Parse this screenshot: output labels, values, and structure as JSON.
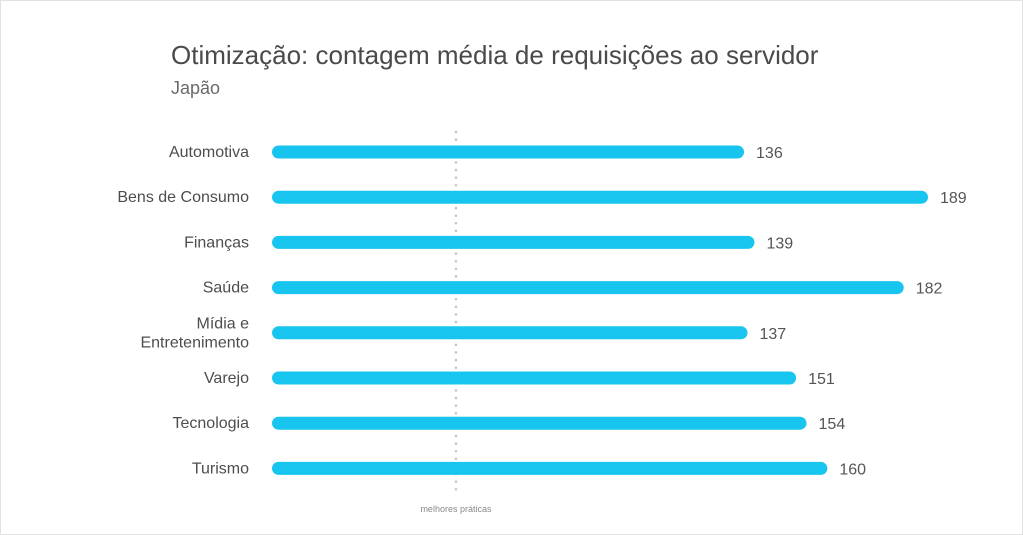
{
  "chart_data": {
    "type": "bar",
    "orientation": "horizontal",
    "title": "Otimização: contagem média de requisições ao servidor",
    "subtitle": "Japão",
    "categories": [
      [
        "Automotiva"
      ],
      [
        "Bens de Consumo"
      ],
      [
        "Finanças"
      ],
      [
        "Saúde"
      ],
      [
        "Mídia e",
        "Entretenimento"
      ],
      [
        "Varejo"
      ],
      [
        "Tecnologia"
      ],
      [
        "Turismo"
      ]
    ],
    "values": [
      136,
      189,
      139,
      182,
      137,
      151,
      154,
      160
    ],
    "value_labels": [
      "136",
      "189",
      "139",
      "182",
      "137",
      "151",
      "154",
      "160"
    ],
    "reference_line": {
      "value": 53,
      "label": "melhores práticas"
    },
    "xlim": [
      0,
      189
    ],
    "bar_color": "#18c5ee",
    "grid": false,
    "axes_visible": false
  }
}
